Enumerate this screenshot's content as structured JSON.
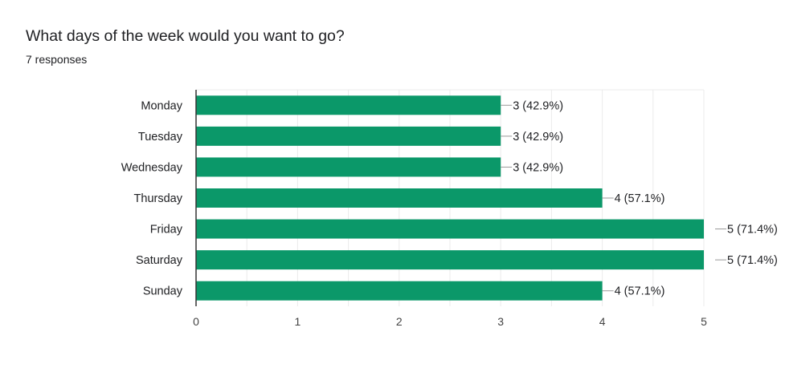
{
  "question": {
    "title": "What days of the week would you want to go?",
    "responses": "7 responses"
  },
  "colors": {
    "bar": "#0b9869",
    "grid": "#ebebeb",
    "axis": "#333333",
    "text": "#202124"
  },
  "chart_data": {
    "type": "bar",
    "orientation": "horizontal",
    "title": "What days of the week would you want to go?",
    "subtitle": "7 responses",
    "categories": [
      "Monday",
      "Tuesday",
      "Wednesday",
      "Thursday",
      "Friday",
      "Saturday",
      "Sunday"
    ],
    "values": [
      3,
      3,
      3,
      4,
      5,
      5,
      4
    ],
    "data_labels": [
      "3 (42.9%)",
      "3 (42.9%)",
      "3 (42.9%)",
      "4 (57.1%)",
      "5 (71.4%)",
      "5 (71.4%)",
      "4 (57.1%)"
    ],
    "xlim": [
      0,
      5
    ],
    "xticks": [
      "0",
      "1",
      "2",
      "3",
      "4",
      "5"
    ],
    "grid": true,
    "legend": "none"
  }
}
